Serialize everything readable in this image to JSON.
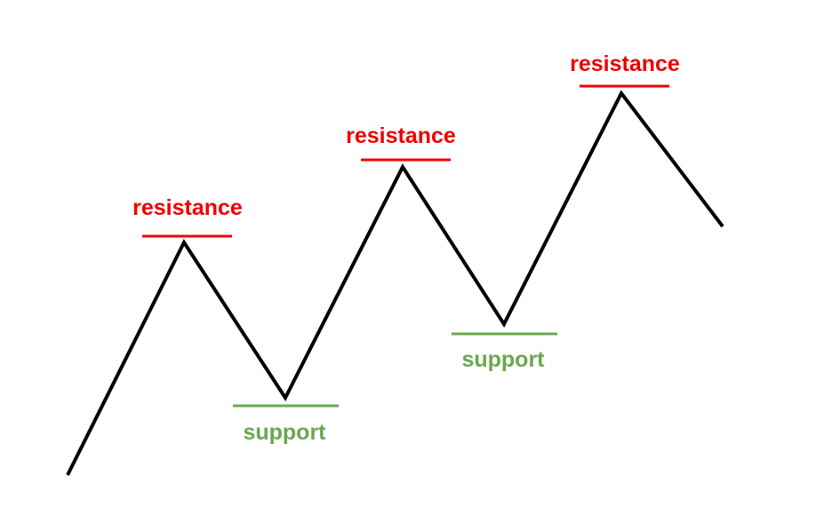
{
  "colors": {
    "price_line": "#000000",
    "resistance": "#ee0000",
    "support": "#6aa84f",
    "background": "#ffffff"
  },
  "labels": {
    "resistance_1": "resistance",
    "resistance_2": "resistance",
    "resistance_3": "resistance",
    "support_1": "support",
    "support_2": "support"
  }
}
